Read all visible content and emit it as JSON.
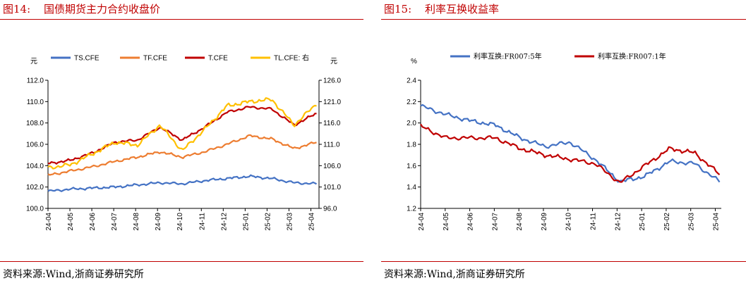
{
  "left": {
    "label": "图14:",
    "title": "国债期货主力合约收盘价",
    "source": "资料来源:Wind,浙商证券研究所"
  },
  "right": {
    "label": "图15:",
    "title": "利率互换收益率",
    "source": "资料来源:Wind,浙商证券研究所"
  },
  "chart_data": [
    {
      "type": "line",
      "x": [
        "24-04",
        "24-05",
        "24-06",
        "24-07",
        "24-08",
        "24-09",
        "24-10",
        "24-11",
        "24-12",
        "25-01",
        "25-02",
        "25-03",
        "25-04"
      ],
      "y_left_unit": "元",
      "y_right_unit": "元",
      "ylim": [
        100.0,
        112.0
      ],
      "y_ticks": [
        "100.0",
        "102.0",
        "104.0",
        "106.0",
        "108.0",
        "110.0",
        "112.0"
      ],
      "y2lim": [
        96.0,
        126.0
      ],
      "y2_ticks": [
        "96.0",
        "101.0",
        "106.0",
        "111.0",
        "116.0",
        "121.0",
        "126.0"
      ],
      "legend_position": "top",
      "series": [
        {
          "name": "TS.CFE",
          "axis": "left",
          "color": "#4472c4",
          "values": [
            101.6,
            101.8,
            101.9,
            102.0,
            102.2,
            102.4,
            102.3,
            102.6,
            102.8,
            103.0,
            102.8,
            102.4,
            102.3
          ]
        },
        {
          "name": "TF.CFE",
          "axis": "left",
          "color": "#ed7d31",
          "values": [
            103.1,
            103.5,
            103.9,
            104.4,
            104.8,
            105.3,
            104.8,
            105.3,
            106.0,
            106.8,
            106.5,
            105.6,
            106.2
          ]
        },
        {
          "name": "T.CFE",
          "axis": "left",
          "color": "#c00000",
          "values": [
            104.2,
            104.5,
            105.2,
            106.2,
            106.4,
            107.6,
            106.4,
            107.6,
            109.0,
            109.5,
            109.3,
            107.8,
            108.9
          ]
        },
        {
          "name": "TL.CFE: 右",
          "axis": "right",
          "color": "#ffc000",
          "values": [
            105.5,
            106.2,
            108.8,
            111.5,
            110.8,
            115.5,
            109.5,
            114.5,
            120.0,
            121.0,
            121.5,
            115.5,
            120.5
          ]
        }
      ]
    },
    {
      "type": "line",
      "x": [
        "24-04",
        "24-05",
        "24-06",
        "24-07",
        "24-08",
        "24-09",
        "24-10",
        "24-11",
        "24-12",
        "25-01",
        "25-02",
        "25-03",
        "25-04"
      ],
      "y_unit": "%",
      "ylim": [
        1.2,
        2.4
      ],
      "y_ticks": [
        "1.2",
        "1.4",
        "1.6",
        "1.8",
        "2.0",
        "2.2",
        "2.4"
      ],
      "legend_position": "top",
      "series": [
        {
          "name": "利率互换:FR007:5年",
          "color": "#4472c4",
          "values": [
            2.16,
            2.08,
            2.02,
            1.98,
            1.86,
            1.78,
            1.82,
            1.66,
            1.45,
            1.5,
            1.64,
            1.62,
            1.45
          ]
        },
        {
          "name": "利率互换:FR007:1年",
          "color": "#c00000",
          "values": [
            1.97,
            1.86,
            1.86,
            1.86,
            1.76,
            1.7,
            1.66,
            1.62,
            1.44,
            1.6,
            1.76,
            1.72,
            1.52
          ]
        }
      ]
    }
  ]
}
